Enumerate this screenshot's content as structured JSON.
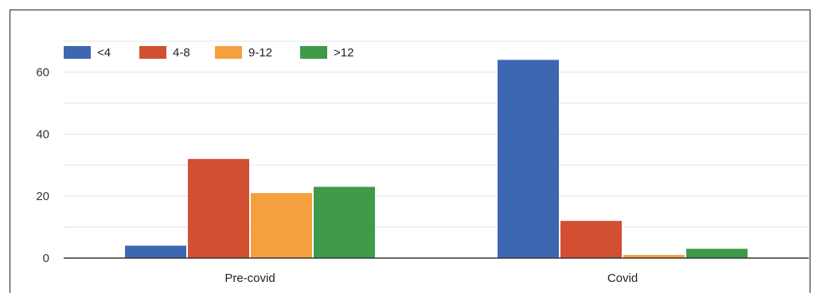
{
  "chart_data": {
    "type": "bar",
    "title": "",
    "xlabel": "",
    "ylabel": "",
    "categories": [
      "Pre-covid",
      "Covid"
    ],
    "series": [
      {
        "name": "<4",
        "values": [
          4,
          64
        ],
        "color": "#3d67b1"
      },
      {
        "name": "4-8",
        "values": [
          32,
          12
        ],
        "color": "#d24f31"
      },
      {
        "name": "9-12",
        "values": [
          21,
          1
        ],
        "color": "#f4a03f"
      },
      {
        "name": ">12",
        "values": [
          23,
          3
        ],
        "color": "#3f9a4a"
      }
    ],
    "ylim": [
      0,
      70
    ],
    "yticks": [
      0,
      20,
      40,
      60
    ],
    "gridlines": true,
    "legend_position": "top-left"
  }
}
